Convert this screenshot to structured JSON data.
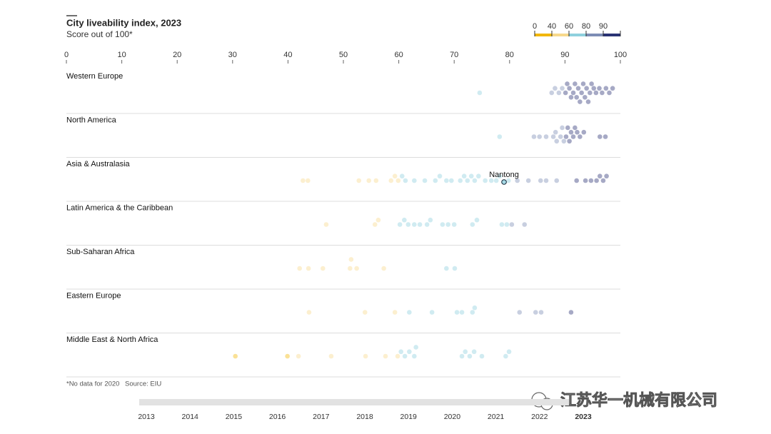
{
  "chart_data": {
    "type": "beeswarm",
    "title": "City liveability index, 2023",
    "subtitle": "Score out of 100*",
    "footnote": "*No data for 2020",
    "source": "Source: EIU",
    "xlim": [
      0,
      100
    ],
    "xticks": [
      0,
      10,
      20,
      30,
      40,
      50,
      60,
      70,
      80,
      90,
      100
    ],
    "color_scale": {
      "ticks": [
        0,
        40,
        60,
        80,
        90
      ],
      "lim": [
        0,
        100
      ],
      "colors": [
        "#f2b705",
        "#f7d98c",
        "#8fd0de",
        "#7d8db5",
        "#2a3374"
      ]
    },
    "groups": [
      {
        "name": "Western Europe",
        "values": [
          74.6,
          87.6,
          88.2,
          88.9,
          89.5,
          90.1,
          90.4,
          90.8,
          91.1,
          91.5,
          91.8,
          92.1,
          92.4,
          92.7,
          93.0,
          93.3,
          93.6,
          93.9,
          94.2,
          94.5,
          94.8,
          95.2,
          95.6,
          96.2,
          96.7,
          97.4,
          98.0,
          98.6
        ]
      },
      {
        "name": "North America",
        "values": [
          78.2,
          84.4,
          85.4,
          86.6,
          87.9,
          88.3,
          88.5,
          89.2,
          89.5,
          89.8,
          90.2,
          90.5,
          90.8,
          91.1,
          91.5,
          91.8,
          92.2,
          92.7,
          93.4,
          96.3,
          97.3
        ]
      },
      {
        "name": "Asia & Australasia",
        "values": [
          42.7,
          43.6,
          52.8,
          54.6,
          55.9,
          58.6,
          59.3,
          59.9,
          60.6,
          61.2,
          62.8,
          64.7,
          66.6,
          67.4,
          68.6,
          69.5,
          71.1,
          71.8,
          72.4,
          73.1,
          73.7,
          74.4,
          75.6,
          76.7,
          77.6,
          78.2,
          79.8,
          81.4,
          83.4,
          85.6,
          86.6,
          88.5,
          92.1,
          93.7,
          94.7,
          95.7,
          96.3,
          96.9,
          97.5
        ],
        "highlight": {
          "name": "Nantong",
          "value": 79.0
        }
      },
      {
        "name": "Latin America & the Caribbean",
        "values": [
          46.9,
          55.7,
          56.3,
          60.2,
          61.0,
          61.7,
          62.8,
          63.8,
          65.1,
          65.7,
          67.9,
          68.9,
          70.0,
          73.3,
          74.1,
          78.6,
          79.5,
          80.4,
          82.7
        ]
      },
      {
        "name": "Sub-Saharan Africa",
        "values": [
          42.1,
          43.7,
          46.3,
          51.2,
          51.4,
          52.4,
          57.3,
          68.6,
          70.1
        ]
      },
      {
        "name": "Eastern Europe",
        "values": [
          43.8,
          53.9,
          59.3,
          61.9,
          66.0,
          70.5,
          71.4,
          73.3,
          73.7,
          81.8,
          84.7,
          85.7,
          91.1
        ]
      },
      {
        "name": "Middle East & North Africa",
        "values": [
          30.5,
          39.9,
          41.9,
          47.8,
          54.0,
          57.6,
          59.8,
          60.4,
          61.1,
          61.9,
          62.8,
          63.1,
          71.4,
          72.0,
          72.8,
          73.6,
          75.0,
          79.3,
          79.9
        ]
      }
    ],
    "timeline": {
      "years": [
        "2013",
        "2014",
        "2015",
        "2016",
        "2017",
        "2018",
        "2019",
        "2020",
        "2021",
        "2022",
        "2023"
      ],
      "selected": "2023"
    }
  },
  "watermark": "江苏华一机械有限公司"
}
